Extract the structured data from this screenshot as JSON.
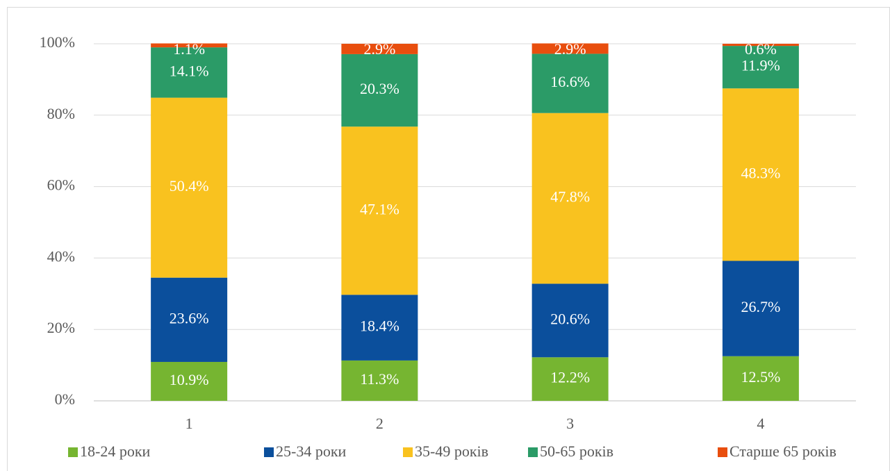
{
  "chart_data": {
    "type": "stacked_bar",
    "categories": [
      "1",
      "2",
      "3",
      "4"
    ],
    "series": [
      {
        "name": "18-24 роки",
        "color": "#76b531",
        "values": [
          10.9,
          11.3,
          12.2,
          12.5
        ],
        "value_labels": [
          "10.9%",
          "11.3%",
          "12.2%",
          "12.5%"
        ]
      },
      {
        "name": "25-34 роки",
        "color": "#0b4f9c",
        "values": [
          23.6,
          18.4,
          20.6,
          26.7
        ],
        "value_labels": [
          "23.6%",
          "18.4%",
          "20.6%",
          "26.7%"
        ]
      },
      {
        "name": "35-49 років",
        "color": "#f9c21f",
        "values": [
          50.4,
          47.1,
          47.8,
          48.3
        ],
        "value_labels": [
          "50.4%",
          "47.1%",
          "47.8%",
          "48.3%"
        ]
      },
      {
        "name": "50-65 років",
        "color": "#2b9b67",
        "values": [
          14.1,
          20.3,
          16.6,
          11.9
        ],
        "value_labels": [
          "14.1%",
          "20.3%",
          "16.6%",
          "11.9%"
        ]
      },
      {
        "name": "Старше 65 років",
        "color": "#e84e0e",
        "values": [
          1.1,
          2.9,
          2.9,
          0.6
        ],
        "value_labels": [
          "1.1%",
          "2.9%",
          "2.9%",
          "0.6%"
        ]
      }
    ],
    "ylim": [
      0,
      100
    ],
    "yticks": [
      {
        "value": 0,
        "label": "0%"
      },
      {
        "value": 20,
        "label": "20%"
      },
      {
        "value": 40,
        "label": "40%"
      },
      {
        "value": 60,
        "label": "60%"
      },
      {
        "value": 80,
        "label": "80%"
      },
      {
        "value": 100,
        "label": "100%"
      }
    ],
    "grid": true,
    "legend": "bottom"
  }
}
